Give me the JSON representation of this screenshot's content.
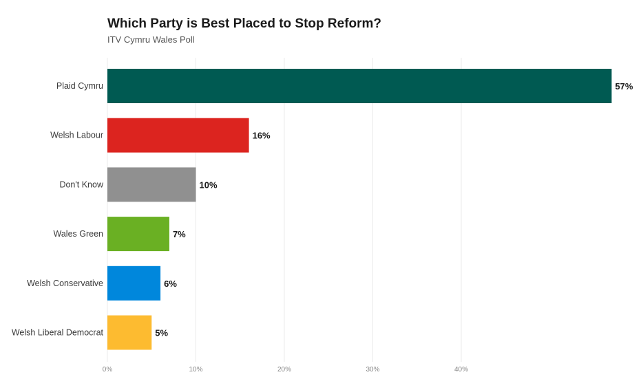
{
  "chart_data": {
    "type": "bar",
    "orientation": "horizontal",
    "title": "Which Party is Best Placed to Stop Reform?",
    "subtitle": "ITV Cymru Wales Poll",
    "categories": [
      "Plaid Cymru",
      "Welsh Labour",
      "Don't Know",
      "Wales Green",
      "Welsh Conservative",
      "Welsh Liberal Democrat"
    ],
    "values": [
      57,
      16,
      10,
      7,
      6,
      5
    ],
    "value_labels": [
      "57%",
      "16%",
      "10%",
      "7%",
      "6%",
      "5%"
    ],
    "colors": [
      "#005a52",
      "#dc241f",
      "#909090",
      "#6ab023",
      "#0087dc",
      "#fdbb30"
    ],
    "xticks": [
      0,
      10,
      20,
      30,
      40
    ],
    "xtick_labels": [
      "0%",
      "10%",
      "20%",
      "30%",
      "40%"
    ],
    "xlim": [
      0,
      57
    ],
    "grid": true,
    "gridline_color": "#ebebeb",
    "legend": "none"
  }
}
